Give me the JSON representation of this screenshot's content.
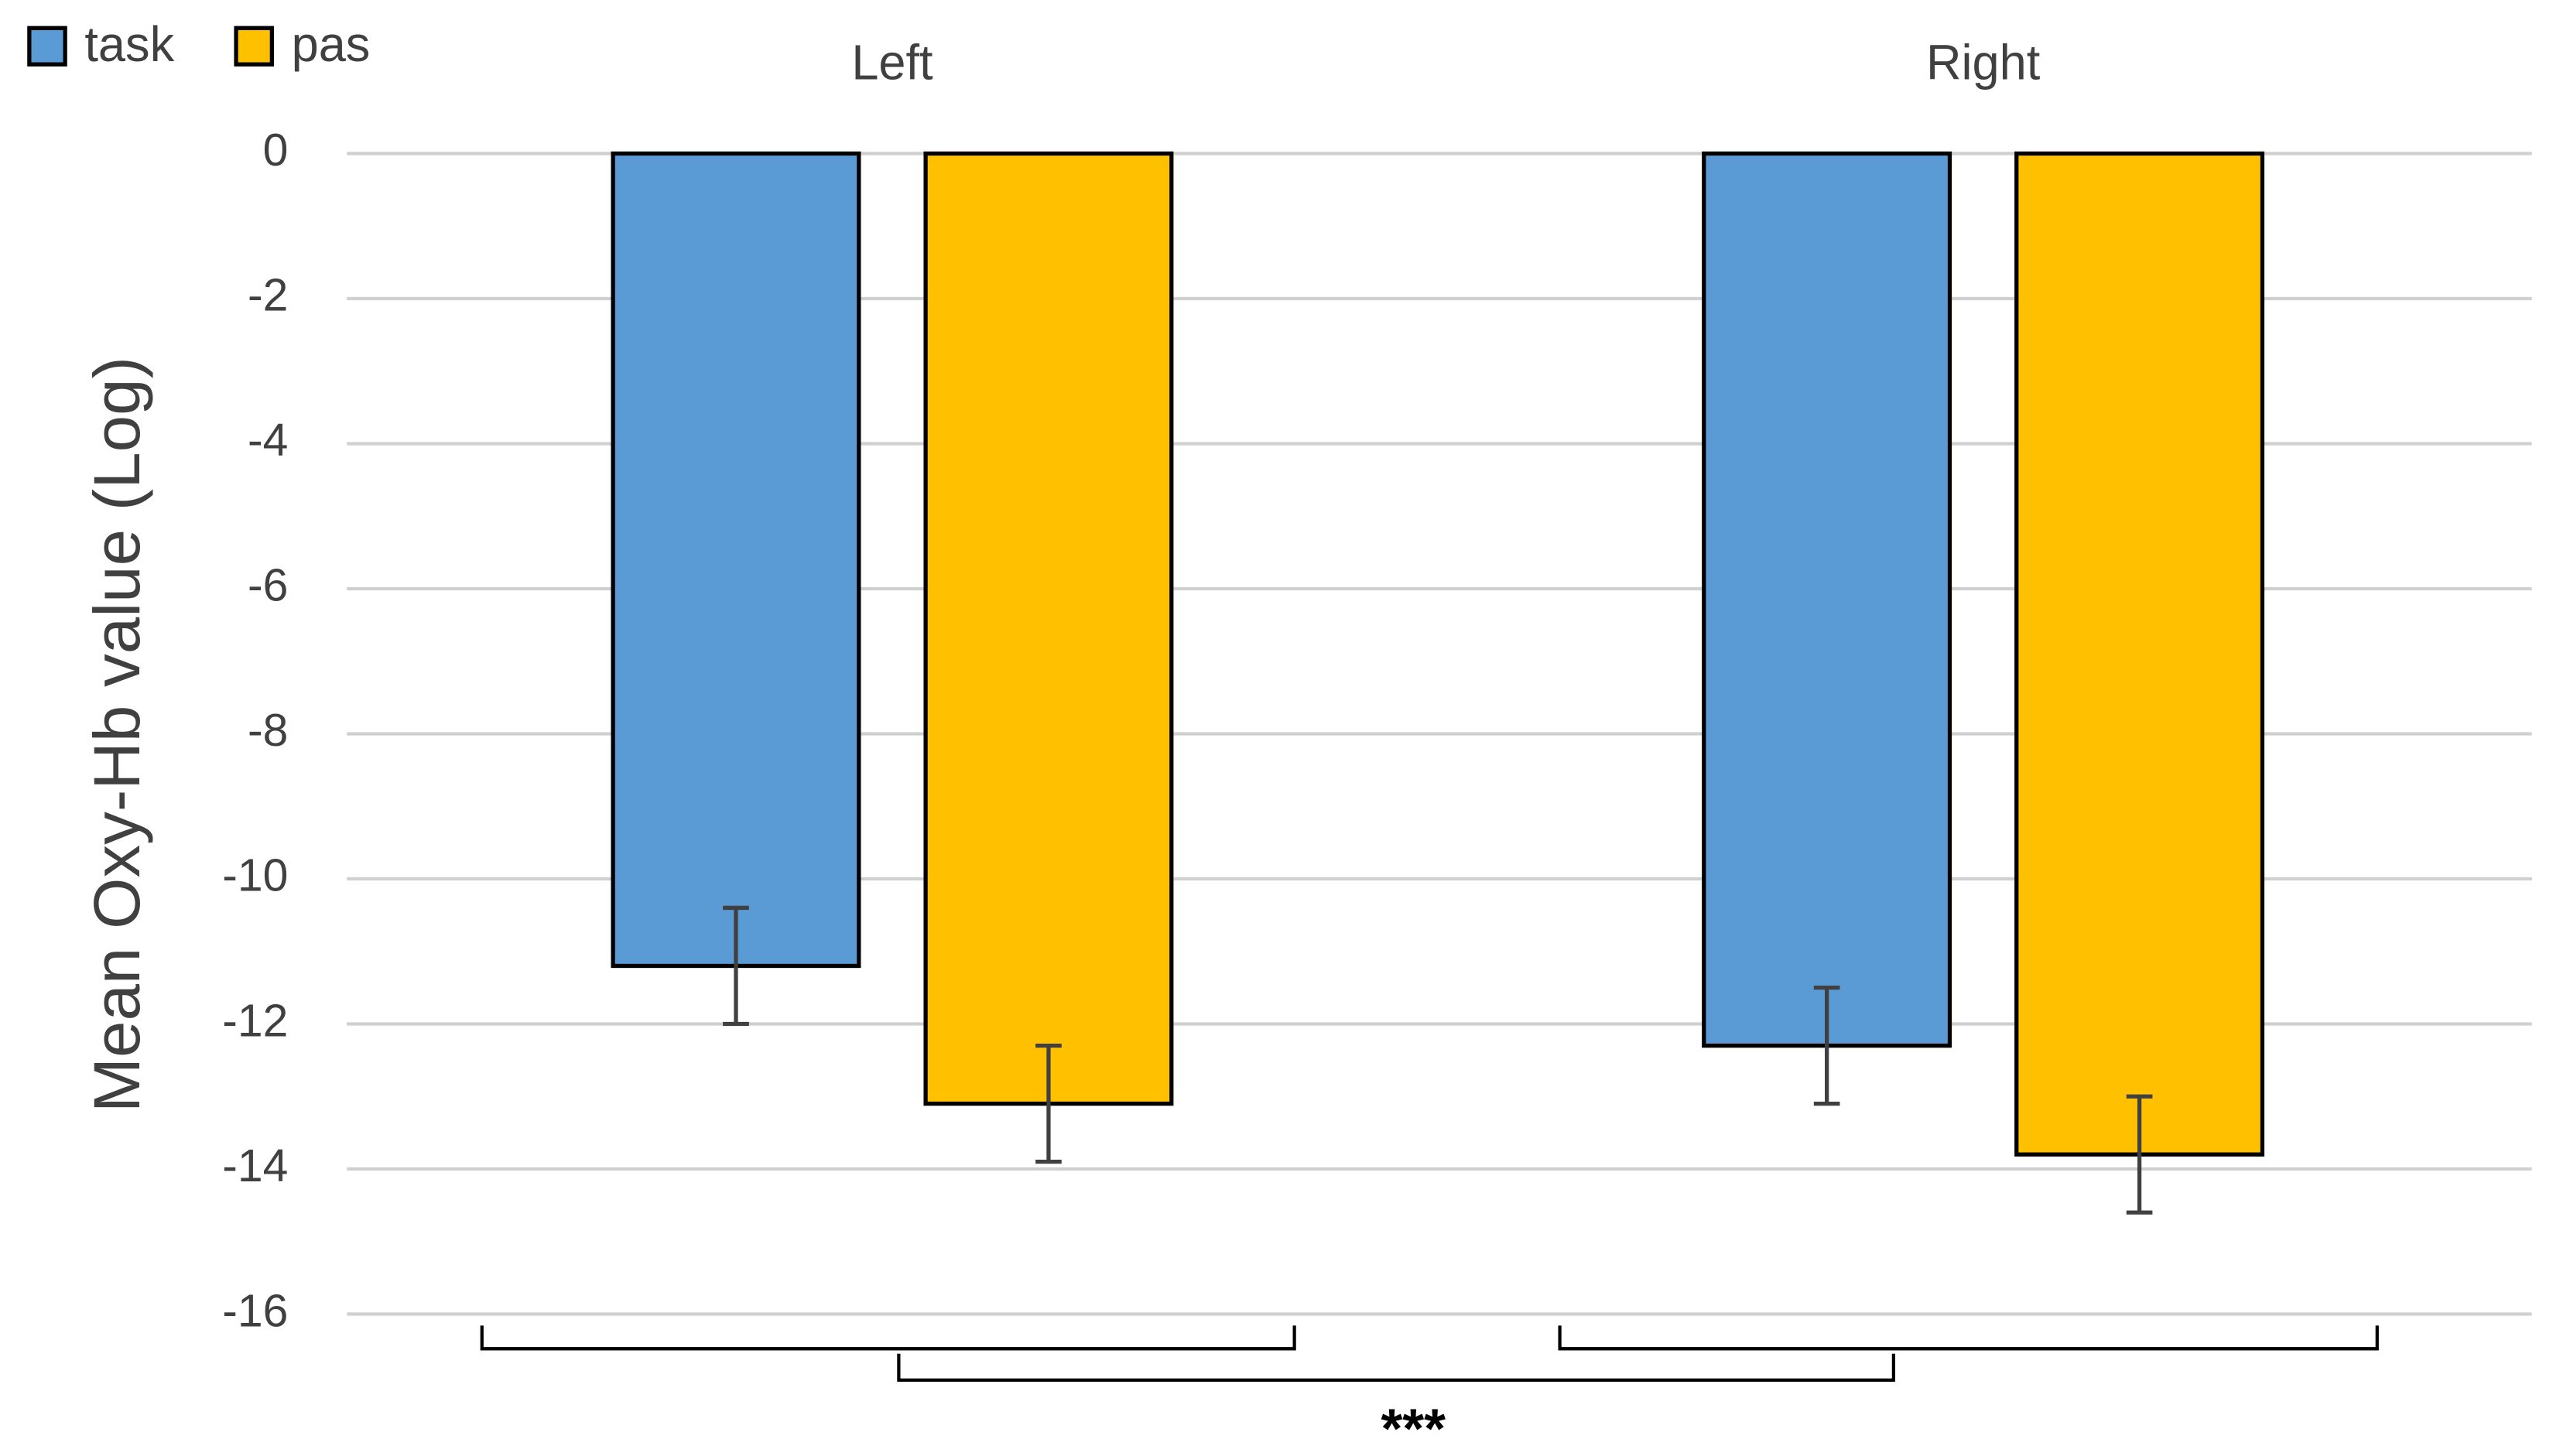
{
  "chart_data": {
    "type": "bar",
    "y_label": "Mean Oxy-Hb value (Log)",
    "categories": [
      "Left",
      "Right"
    ],
    "series": [
      {
        "name": "task",
        "color": "#5b9bd5",
        "values": [
          -11.2,
          -12.3
        ],
        "errors": [
          0.8,
          0.8
        ]
      },
      {
        "name": "pas",
        "color": "#ffc000",
        "values": [
          -13.1,
          -13.8
        ],
        "errors": [
          0.8,
          0.8
        ]
      }
    ],
    "ylim": [
      -16,
      0
    ],
    "yticks": [
      0,
      -2,
      -4,
      -6,
      -8,
      -10,
      -12,
      -14,
      -16
    ],
    "grid": true,
    "legend": "top-left",
    "annotation": "***"
  }
}
